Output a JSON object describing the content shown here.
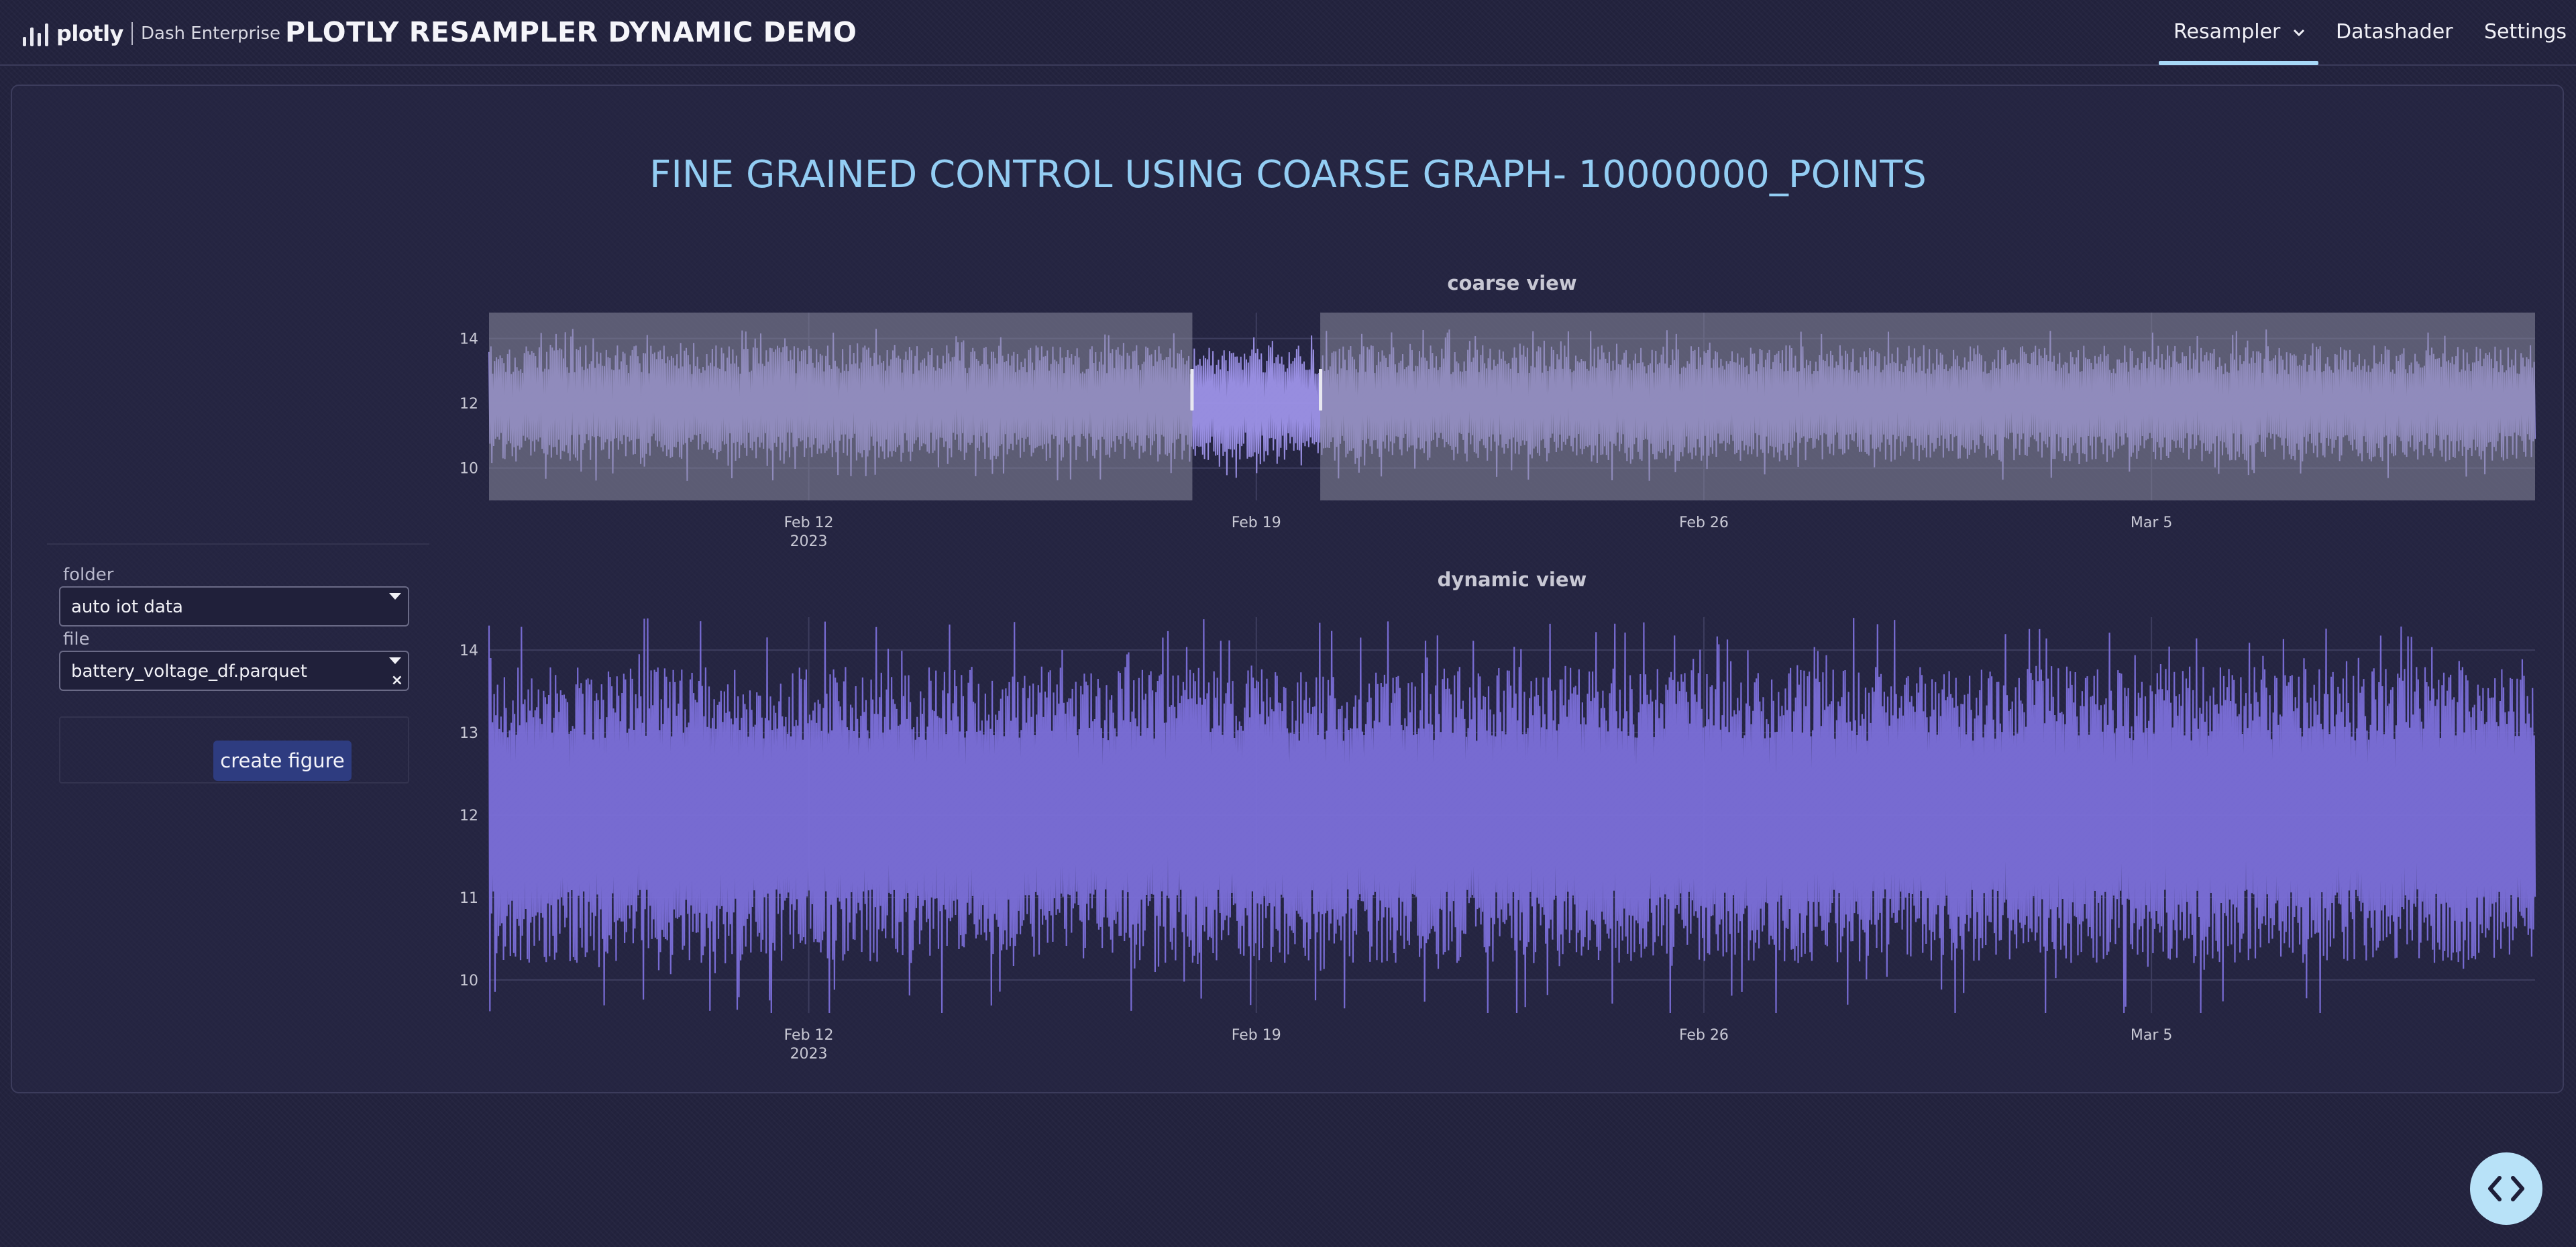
{
  "header": {
    "logo_text": "plotly",
    "logo_subtitle": "Dash Enterprise",
    "app_title": "PLOTLY RESAMPLER DYNAMIC DEMO",
    "nav": [
      {
        "label": "Resampler",
        "icon": "chevron-down-icon",
        "active": true
      },
      {
        "label": "Datashader"
      },
      {
        "label": "Settings"
      }
    ]
  },
  "main": {
    "heading": "FINE GRAINED CONTROL USING COARSE GRAPH- 10000000_POINTS"
  },
  "controls": {
    "folder_label": "folder",
    "folder_value": "auto iot data",
    "file_label": "file",
    "file_value": "battery_voltage_df.parquet",
    "create_button": "create figure"
  },
  "colors": {
    "background": "#23233e",
    "heading": "#93cdf3",
    "trace": "#7b6fd9",
    "trace_coarse": "#9d92e8",
    "selection_mask": "#8a8a9e",
    "accent": "#a7d8f7"
  },
  "chart_data": [
    {
      "type": "line",
      "title": "coarse view",
      "series": [
        {
          "values_description_only": true
        }
      ],
      "x_range": [
        "2023-02-07",
        "2023-03-11"
      ],
      "x_ticks": [
        {
          "date": "2023-02-12",
          "label": "Feb 12",
          "sublabel": "2023"
        },
        {
          "date": "2023-02-19",
          "label": "Feb 19"
        },
        {
          "date": "2023-02-26",
          "label": "Feb 26"
        },
        {
          "date": "2023-03-05",
          "label": "Mar 5"
        }
      ],
      "y_ticks": [
        10,
        12,
        14
      ],
      "ylim": [
        9.0,
        14.8
      ],
      "typical_range": [
        10.2,
        13.8
      ],
      "outlier_range": [
        9.6,
        14.3
      ],
      "selected_range": [
        "2023-02-18",
        "2023-02-20"
      ],
      "grid": true
    },
    {
      "type": "line",
      "title": "dynamic view",
      "x_range": [
        "2023-02-07",
        "2023-03-11"
      ],
      "x_ticks": [
        {
          "date": "2023-02-12",
          "label": "Feb 12",
          "sublabel": "2023"
        },
        {
          "date": "2023-02-19",
          "label": "Feb 19"
        },
        {
          "date": "2023-02-26",
          "label": "Feb 26"
        },
        {
          "date": "2023-03-05",
          "label": "Mar 5"
        }
      ],
      "y_ticks": [
        10,
        11,
        12,
        13,
        14
      ],
      "ylim": [
        9.6,
        14.4
      ],
      "typical_range": [
        10.2,
        13.8
      ],
      "outlier_range": [
        9.5,
        14.4
      ],
      "grid": true
    }
  ]
}
